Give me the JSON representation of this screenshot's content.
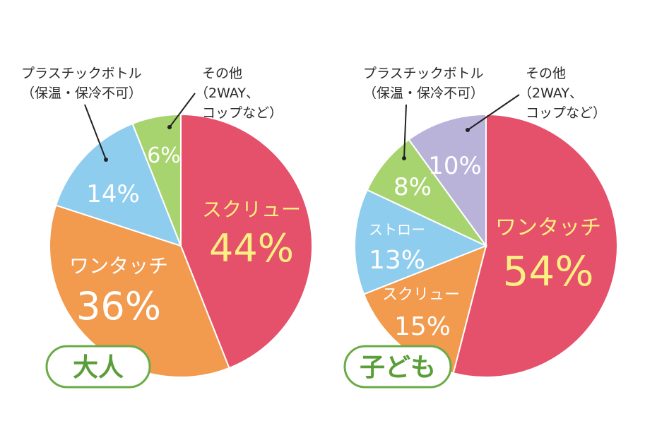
{
  "chart_data": [
    {
      "type": "pie",
      "badge": "大人",
      "slices": [
        {
          "name": "スクリュー",
          "value": 44,
          "label": "44%",
          "color": "#e5506b"
        },
        {
          "name": "ワンタッチ",
          "value": 36,
          "label": "36%",
          "color": "#f29a4e"
        },
        {
          "name": "",
          "value": 14,
          "label": "14%",
          "color": "#8fcdee"
        },
        {
          "name": "",
          "value": 6,
          "label": "6%",
          "color": "#a8d46f"
        }
      ],
      "callouts": [
        {
          "line1": "プラスチックボトル",
          "line2": "（保温・保冷不可）"
        },
        {
          "line1": "その他",
          "line2": "（2WAY、",
          "line3": "コップなど）"
        }
      ]
    },
    {
      "type": "pie",
      "badge": "子ども",
      "slices": [
        {
          "name": "ワンタッチ",
          "value": 54,
          "label": "54%",
          "color": "#e5506b"
        },
        {
          "name": "スクリュー",
          "value": 15,
          "label": "15%",
          "color": "#f29a4e"
        },
        {
          "name": "ストロー",
          "value": 13,
          "label": "13%",
          "color": "#8fcdee"
        },
        {
          "name": "",
          "value": 8,
          "label": "8%",
          "color": "#a8d46f"
        },
        {
          "name": "",
          "value": 10,
          "label": "10%",
          "color": "#b9b2d9"
        }
      ],
      "callouts": [
        {
          "line1": "プラスチックボトル",
          "line2": "（保温・保冷不可）"
        },
        {
          "line1": "その他",
          "line2": "（2WAY、",
          "line3": "コップなど）"
        }
      ]
    }
  ]
}
